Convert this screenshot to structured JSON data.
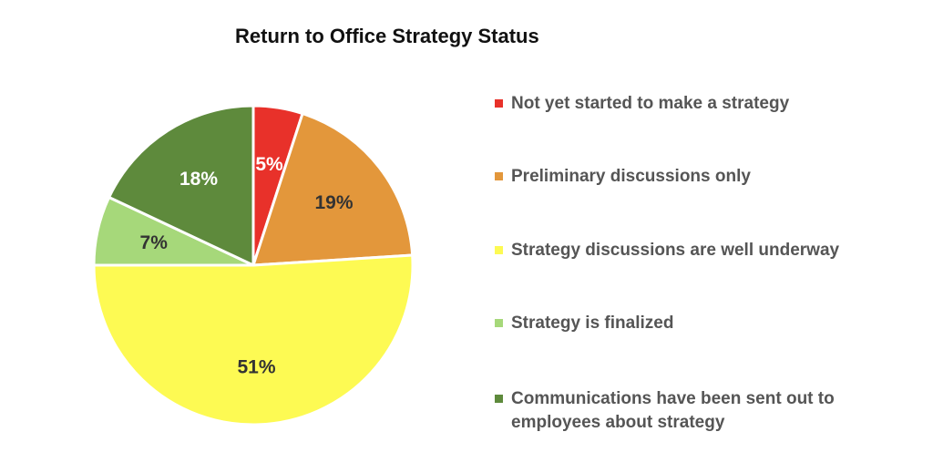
{
  "chart_data": {
    "type": "pie",
    "title": "Return to Office Strategy Status",
    "slices": [
      {
        "label": "Not yet started to make a strategy",
        "value": 5,
        "value_label": "5%",
        "color": "#e8312a",
        "label_color": "#ffffff"
      },
      {
        "label": "Preliminary discussions only",
        "value": 19,
        "value_label": "19%",
        "color": "#e3973b",
        "label_color": "#333333"
      },
      {
        "label": "Strategy discussions are well underway",
        "value": 51,
        "value_label": "51%",
        "color": "#fdfa53",
        "label_color": "#333333"
      },
      {
        "label": "Strategy is finalized",
        "value": 7,
        "value_label": "7%",
        "color": "#a6d87a",
        "label_color": "#333333"
      },
      {
        "label": "Communications have been sent out to employees about strategy",
        "value": 18,
        "value_label": "18%",
        "color": "#5e8a3c",
        "label_color": "#ffffff"
      }
    ],
    "legend_position": "right"
  }
}
